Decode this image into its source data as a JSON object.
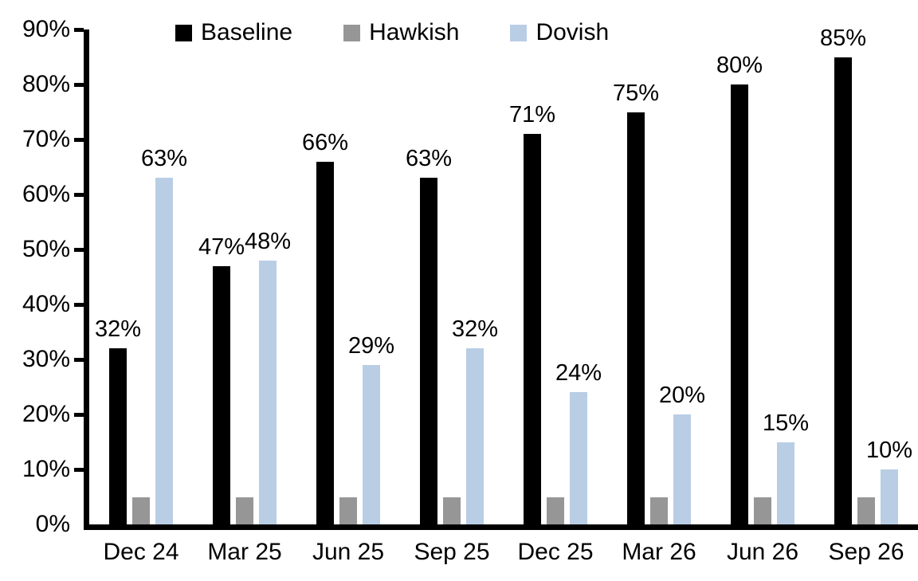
{
  "chart_data": {
    "type": "bar",
    "title": "",
    "xlabel": "",
    "ylabel": "",
    "categories": [
      "Dec 24",
      "Mar 25",
      "Jun 25",
      "Sep 25",
      "Dec 25",
      "Mar 26",
      "Jun 26",
      "Sep 26"
    ],
    "series": [
      {
        "name": "Baseline",
        "color": "#000000",
        "values": [
          32,
          47,
          66,
          63,
          71,
          75,
          80,
          85
        ],
        "labels": [
          "32%",
          "47%",
          "66%",
          "63%",
          "71%",
          "75%",
          "80%",
          "85%"
        ]
      },
      {
        "name": "Hawkish",
        "color": "#969696",
        "values": [
          5,
          5,
          5,
          5,
          5,
          5,
          5,
          5
        ],
        "labels": [
          "",
          "",
          "",
          "",
          "",
          "",
          "",
          ""
        ]
      },
      {
        "name": "Dovish",
        "color": "#B9CDE5",
        "values": [
          63,
          48,
          29,
          32,
          24,
          20,
          15,
          10
        ],
        "labels": [
          "63%",
          "48%",
          "29%",
          "32%",
          "24%",
          "20%",
          "15%",
          "10%"
        ]
      }
    ],
    "ylim": [
      0,
      90
    ],
    "ytick_step": 10,
    "ytick_labels": [
      "0%",
      "10%",
      "20%",
      "30%",
      "40%",
      "50%",
      "60%",
      "70%",
      "80%",
      "90%"
    ],
    "grid": false,
    "legend_position": "top",
    "axis_color": "#000000",
    "background_color": "#FFFFFF"
  }
}
